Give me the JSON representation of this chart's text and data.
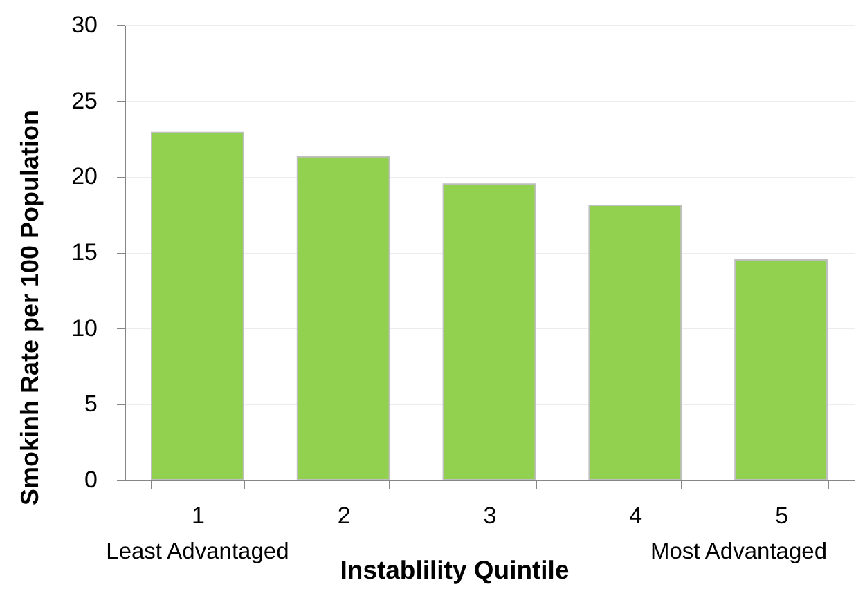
{
  "chart_data": {
    "type": "bar",
    "categories": [
      "1",
      "2",
      "3",
      "4",
      "5"
    ],
    "values": [
      22.9,
      21.3,
      19.5,
      18.1,
      14.5
    ],
    "color": "#92d050",
    "xlabel": "Instablility Quintile",
    "ylabel": "Smokinh Rate per 100 Population",
    "ylim": [
      0,
      30
    ],
    "yticks": [
      0,
      5,
      10,
      15,
      20,
      25,
      30
    ],
    "grid": "y",
    "annotations": [
      "Least Advantaged",
      "Most Advantaged"
    ]
  }
}
